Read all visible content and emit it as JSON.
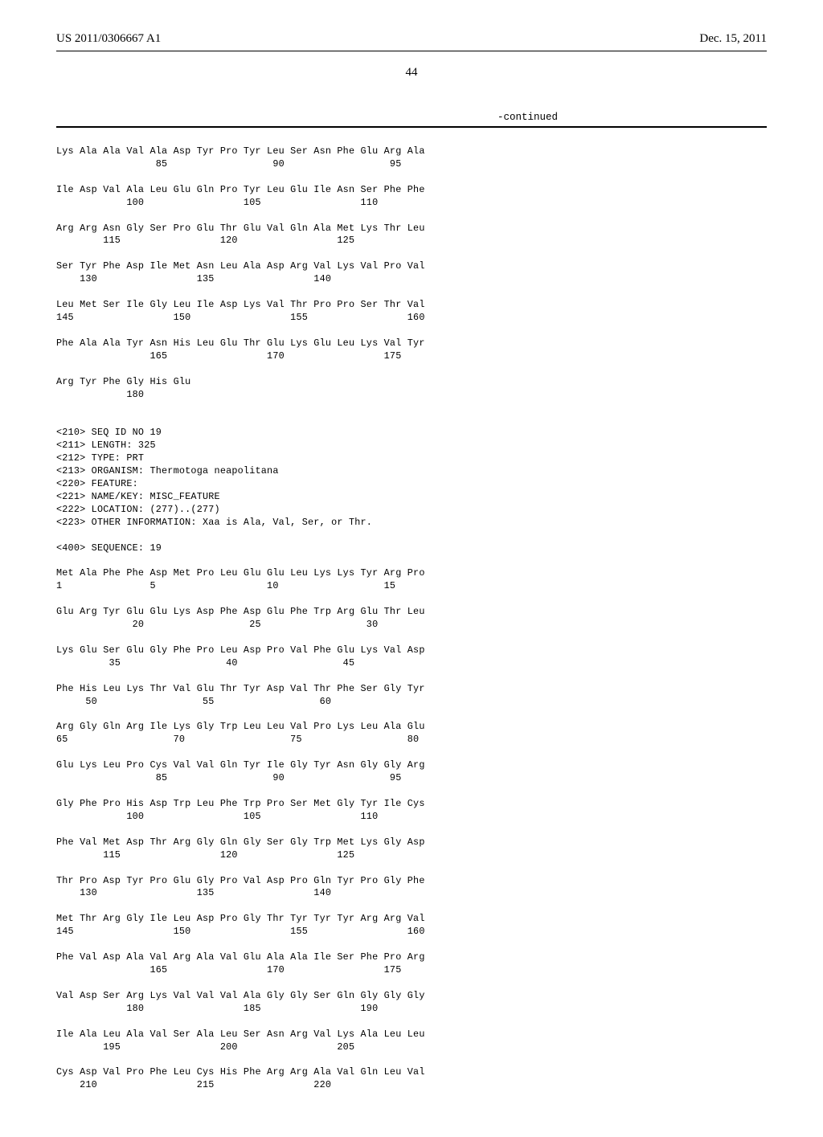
{
  "header": {
    "left": "US 2011/0306667 A1",
    "right": "Dec. 15, 2011"
  },
  "page_number": "44",
  "continued_label": "-continued",
  "seq_rows": [
    {
      "aa": "Lys Ala Ala Val Ala Asp Tyr Pro Tyr Leu Ser Asn Phe Glu Arg Ala",
      "nums": "                 85                  90                  95"
    },
    {
      "aa": "Ile Asp Val Ala Leu Glu Gln Pro Tyr Leu Glu Ile Asn Ser Phe Phe",
      "nums": "            100                 105                 110"
    },
    {
      "aa": "Arg Arg Asn Gly Ser Pro Glu Thr Glu Val Gln Ala Met Lys Thr Leu",
      "nums": "        115                 120                 125"
    },
    {
      "aa": "Ser Tyr Phe Asp Ile Met Asn Leu Ala Asp Arg Val Lys Val Pro Val",
      "nums": "    130                 135                 140"
    },
    {
      "aa": "Leu Met Ser Ile Gly Leu Ile Asp Lys Val Thr Pro Pro Ser Thr Val",
      "nums": "145                 150                 155                 160"
    },
    {
      "aa": "Phe Ala Ala Tyr Asn His Leu Glu Thr Glu Lys Glu Leu Lys Val Tyr",
      "nums": "                165                 170                 175"
    },
    {
      "aa": "Arg Tyr Phe Gly His Glu",
      "nums": "            180"
    }
  ],
  "seq_meta": [
    "<210> SEQ ID NO 19",
    "<211> LENGTH: 325",
    "<212> TYPE: PRT",
    "<213> ORGANISM: Thermotoga neapolitana",
    "<220> FEATURE:",
    "<221> NAME/KEY: MISC_FEATURE",
    "<222> LOCATION: (277)..(277)",
    "<223> OTHER INFORMATION: Xaa is Ala, Val, Ser, or Thr."
  ],
  "seq_header": "<400> SEQUENCE: 19",
  "seq19_rows": [
    {
      "aa": "Met Ala Phe Phe Asp Met Pro Leu Glu Glu Leu Lys Lys Tyr Arg Pro",
      "nums": "1               5                   10                  15"
    },
    {
      "aa": "Glu Arg Tyr Glu Glu Lys Asp Phe Asp Glu Phe Trp Arg Glu Thr Leu",
      "nums": "             20                  25                  30"
    },
    {
      "aa": "Lys Glu Ser Glu Gly Phe Pro Leu Asp Pro Val Phe Glu Lys Val Asp",
      "nums": "         35                  40                  45"
    },
    {
      "aa": "Phe His Leu Lys Thr Val Glu Thr Tyr Asp Val Thr Phe Ser Gly Tyr",
      "nums": "     50                  55                  60"
    },
    {
      "aa": "Arg Gly Gln Arg Ile Lys Gly Trp Leu Leu Val Pro Lys Leu Ala Glu",
      "nums": "65                  70                  75                  80"
    },
    {
      "aa": "Glu Lys Leu Pro Cys Val Val Gln Tyr Ile Gly Tyr Asn Gly Gly Arg",
      "nums": "                 85                  90                  95"
    },
    {
      "aa": "Gly Phe Pro His Asp Trp Leu Phe Trp Pro Ser Met Gly Tyr Ile Cys",
      "nums": "            100                 105                 110"
    },
    {
      "aa": "Phe Val Met Asp Thr Arg Gly Gln Gly Ser Gly Trp Met Lys Gly Asp",
      "nums": "        115                 120                 125"
    },
    {
      "aa": "Thr Pro Asp Tyr Pro Glu Gly Pro Val Asp Pro Gln Tyr Pro Gly Phe",
      "nums": "    130                 135                 140"
    },
    {
      "aa": "Met Thr Arg Gly Ile Leu Asp Pro Gly Thr Tyr Tyr Tyr Arg Arg Val",
      "nums": "145                 150                 155                 160"
    },
    {
      "aa": "Phe Val Asp Ala Val Arg Ala Val Glu Ala Ala Ile Ser Phe Pro Arg",
      "nums": "                165                 170                 175"
    },
    {
      "aa": "Val Asp Ser Arg Lys Val Val Val Ala Gly Gly Ser Gln Gly Gly Gly",
      "nums": "            180                 185                 190"
    },
    {
      "aa": "Ile Ala Leu Ala Val Ser Ala Leu Ser Asn Arg Val Lys Ala Leu Leu",
      "nums": "        195                 200                 205"
    },
    {
      "aa": "Cys Asp Val Pro Phe Leu Cys His Phe Arg Arg Ala Val Gln Leu Val",
      "nums": "    210                 215                 220"
    }
  ]
}
